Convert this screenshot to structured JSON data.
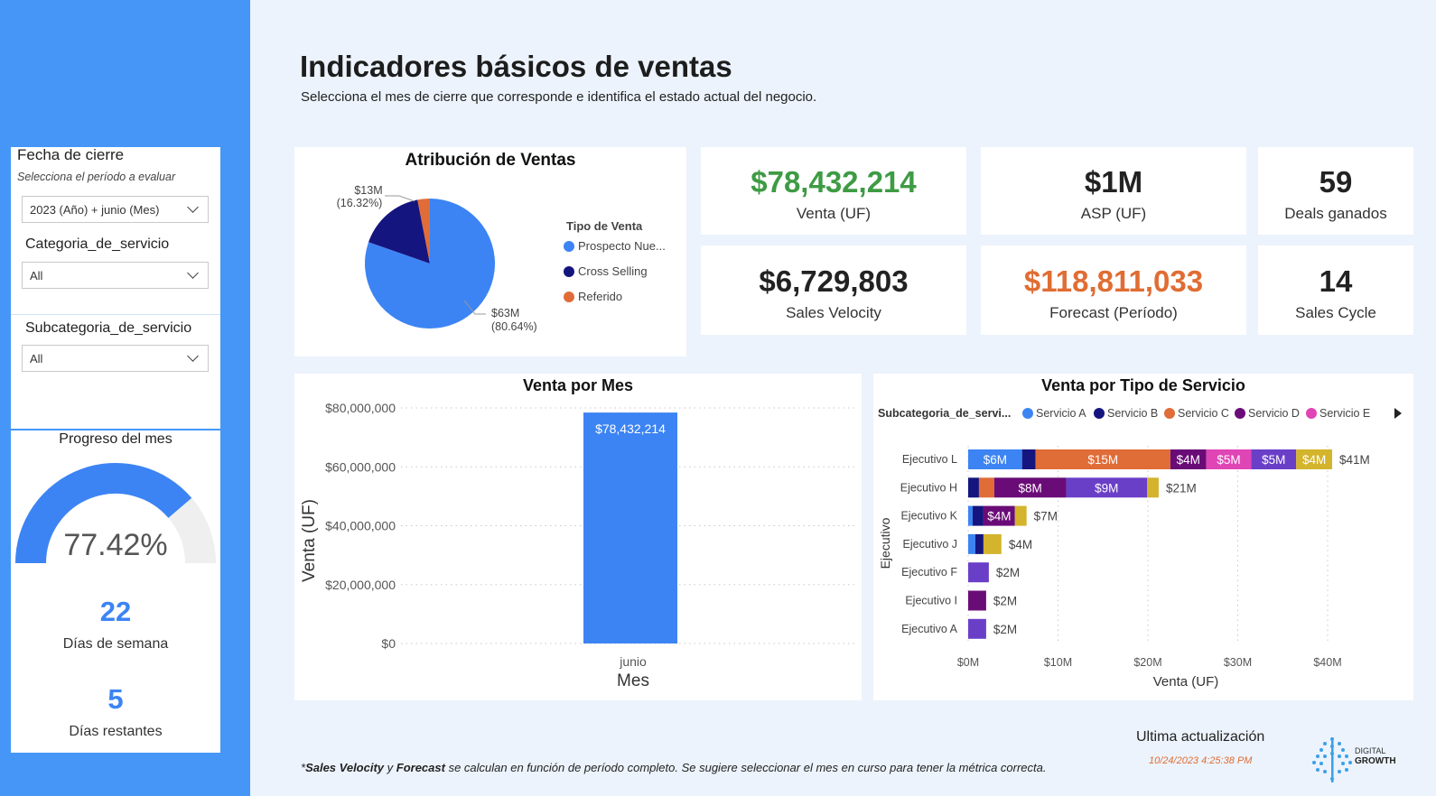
{
  "header": {
    "title": "Indicadores básicos de ventas",
    "subtitle": "Selecciona el mes de cierre que corresponde e identifica el estado actual del negocio."
  },
  "filters": {
    "fecha": {
      "title": "Fecha de cierre",
      "subtitle": "Selecciona el período a evaluar",
      "value": "2023 (Año) + junio (Mes)"
    },
    "categoria": {
      "title": "Categoria_de_servicio",
      "value": "All"
    },
    "subcategoria": {
      "title": "Subcategoria_de_servicio",
      "value": "All"
    }
  },
  "progress": {
    "title": "Progreso del mes",
    "percent_label": "77.42%",
    "fraction": 0.7742,
    "colors": {
      "fill": "#3c84f4",
      "track": "#efefef"
    },
    "dias_semana_value": "22",
    "dias_semana_label": "Días de semana",
    "dias_restantes_value": "5",
    "dias_restantes_label": "Días restantes"
  },
  "kpis": {
    "venta": {
      "value": "$78,432,214",
      "label": "Venta (UF)",
      "color": "#3e9b44"
    },
    "asp": {
      "value": "$1M",
      "label": "ASP (UF)",
      "color": "#111111"
    },
    "deals": {
      "value": "59",
      "label": "Deals ganados",
      "color": "#111111"
    },
    "velocity": {
      "value": "$6,729,803",
      "label": "Sales Velocity",
      "color": "#111111"
    },
    "forecast": {
      "value": "$118,811,033",
      "label": "Forecast (Período)",
      "color": "#e06d33"
    },
    "cycle": {
      "value": "14",
      "label": "Sales Cycle",
      "color": "#111111"
    }
  },
  "pie": {
    "title": "Atribución de Ventas",
    "legend_title": "Tipo de Venta",
    "legend": [
      {
        "label": "Prospecto Nue...",
        "color": "#3c84f4"
      },
      {
        "label": "Cross Selling",
        "color": "#15157f"
      },
      {
        "label": "Referido",
        "color": "#e06c38"
      }
    ],
    "label_big": {
      "value": "$63M",
      "pct": "(80.64%)"
    },
    "label_small": {
      "value": "$13M",
      "pct": "(16.32%)"
    }
  },
  "bar_mes": {
    "title": "Venta por Mes",
    "ylabel": "Venta (UF)",
    "xlabel": "Mes",
    "category": "junio",
    "data_label": "$78,432,214",
    "ticks": [
      "$80,000,000",
      "$60,000,000",
      "$40,000,000",
      "$20,000,000",
      "$0"
    ]
  },
  "stacked": {
    "title": "Venta por Tipo de Servicio",
    "legend_title": "Subcategoria_de_servi...",
    "ylabel": "Ejecutivo",
    "xlabel": "Venta (UF)",
    "xticks": [
      "$0M",
      "$10M",
      "$20M",
      "$30M",
      "$40M"
    ],
    "series": [
      {
        "name": "Servicio A",
        "color": "#3c84f4"
      },
      {
        "name": "Servicio B",
        "color": "#15157f"
      },
      {
        "name": "Servicio C",
        "color": "#e06c38"
      },
      {
        "name": "Servicio D",
        "color": "#6a0c77"
      },
      {
        "name": "Servicio E",
        "color": "#e045b6"
      },
      {
        "name": "",
        "color": "#6a3fc8"
      },
      {
        "name": "",
        "color": "#d3b42c"
      }
    ],
    "rows": [
      {
        "name": "Ejecutivo L",
        "total_label": "$41M"
      },
      {
        "name": "Ejecutivo H",
        "total_label": "$21M"
      },
      {
        "name": "Ejecutivo K",
        "total_label": "$7M"
      },
      {
        "name": "Ejecutivo J",
        "total_label": "$4M"
      },
      {
        "name": "Ejecutivo F",
        "total_label": "$2M"
      },
      {
        "name": "Ejecutivo I",
        "total_label": "$2M"
      },
      {
        "name": "Ejecutivo A",
        "total_label": "$2M"
      }
    ]
  },
  "chart_data": [
    {
      "type": "pie",
      "title": "Atribución de Ventas",
      "legend_title": "Tipo de Venta",
      "categories": [
        "Prospecto Nue...",
        "Cross Selling",
        "Referido"
      ],
      "values": [
        63,
        13,
        2.4
      ],
      "percent": [
        80.64,
        16.32,
        3.04
      ]
    },
    {
      "type": "bar",
      "title": "Venta por Mes",
      "categories": [
        "junio"
      ],
      "values": [
        78432214
      ],
      "xlabel": "Mes",
      "ylabel": "Venta (UF)",
      "ylim": [
        0,
        80000000
      ]
    },
    {
      "type": "bar",
      "orientation": "horizontal-stacked",
      "title": "Venta por Tipo de Servicio",
      "xlabel": "Venta (UF)",
      "ylabel": "Ejecutivo",
      "xlim": [
        0,
        41
      ],
      "categories": [
        "Ejecutivo L",
        "Ejecutivo H",
        "Ejecutivo K",
        "Ejecutivo J",
        "Ejecutivo F",
        "Ejecutivo I",
        "Ejecutivo A"
      ],
      "series": [
        {
          "name": "Servicio A",
          "values": [
            6,
            0,
            0.5,
            0.8,
            0,
            0,
            0
          ]
        },
        {
          "name": "Servicio B",
          "values": [
            1.5,
            1.2,
            1.2,
            0.9,
            0,
            0,
            0
          ]
        },
        {
          "name": "Servicio C",
          "values": [
            15,
            1.7,
            0,
            0,
            0,
            0,
            0
          ]
        },
        {
          "name": "Servicio D",
          "values": [
            4,
            8,
            3.5,
            0,
            0,
            2,
            0
          ]
        },
        {
          "name": "Servicio E",
          "values": [
            5,
            0,
            0,
            0,
            0,
            0,
            0
          ]
        },
        {
          "values": [
            5,
            9,
            0,
            0,
            2.3,
            0,
            2
          ]
        },
        {
          "values": [
            4,
            1.3,
            1.3,
            2,
            0,
            0,
            0
          ]
        }
      ],
      "segment_labels": [
        [
          "$6M",
          "",
          "$15M",
          "$4M",
          "$5M",
          "$5M",
          "$4M"
        ],
        [
          "",
          "",
          "",
          "$8M",
          "",
          "$9M",
          ""
        ],
        [
          "",
          "",
          "",
          "$4M",
          "",
          "",
          ""
        ],
        [
          "",
          "",
          "",
          "",
          "",
          "",
          ""
        ],
        [
          "",
          "",
          "",
          "",
          "",
          "",
          ""
        ],
        [
          "",
          "",
          "",
          "",
          "",
          "",
          ""
        ],
        [
          "",
          "",
          "",
          "",
          "",
          "",
          ""
        ]
      ]
    }
  ],
  "footer": {
    "note_bold1": "Sales Velocity",
    "note_mid": " y ",
    "note_bold2": "Forecast",
    "note_rest": " se calculan en función de período completo. Se sugiere seleccionar el mes en curso para tener la métrica correcta.",
    "update_title": "Ultima actualización",
    "update_date": "10/24/2023 4:25:38 PM",
    "logo_text1": "DIGITAL",
    "logo_text2": "GROWTH"
  }
}
